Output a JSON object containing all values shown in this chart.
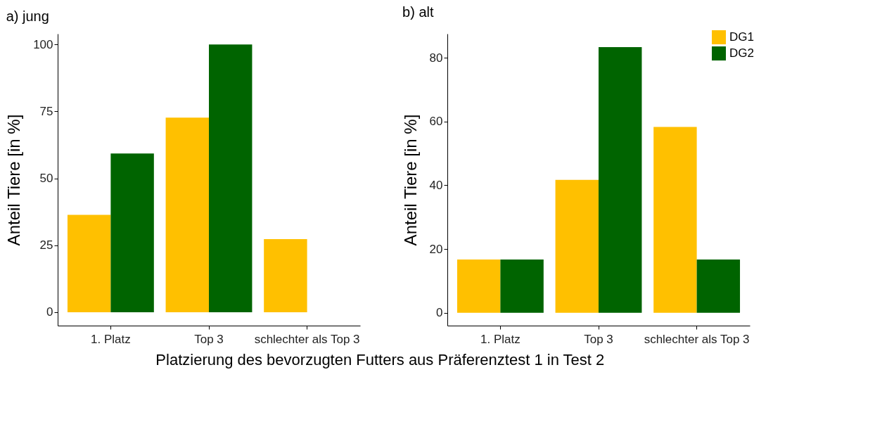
{
  "chart_data": [
    {
      "type": "bar",
      "title": "a) jung",
      "xlabel": "Platzierung des bevorzugten Futters aus Präferenztest 1 in Test 2",
      "ylabel": "Anteil Tiere [in %]",
      "categories": [
        "1. Platz",
        "Top 3",
        "schlechter als Top 3"
      ],
      "series": [
        {
          "color": "#ffc000",
          "values": [
            36.4,
            72.7,
            27.3
          ]
        },
        {
          "color": "#006400",
          "values": [
            59.3,
            100,
            null
          ]
        }
      ],
      "ylim": [
        -5,
        104
      ],
      "yticks": [
        0,
        25,
        50,
        75,
        100
      ],
      "grid": false
    },
    {
      "type": "bar",
      "title": "b) alt",
      "ylabel": "Anteil Tiere [in %]",
      "categories": [
        "1. Platz",
        "Top 3",
        "schlechter als Top 3"
      ],
      "series": [
        {
          "name": "DG1",
          "color": "#ffc000",
          "values": [
            16.7,
            41.7,
            58.3
          ]
        },
        {
          "name": "DG2",
          "color": "#006400",
          "values": [
            16.7,
            83.3,
            16.7
          ]
        }
      ],
      "ylim": [
        -4,
        87.5
      ],
      "yticks": [
        0,
        20,
        40,
        60,
        80
      ],
      "grid": false,
      "legend": "top right"
    }
  ]
}
